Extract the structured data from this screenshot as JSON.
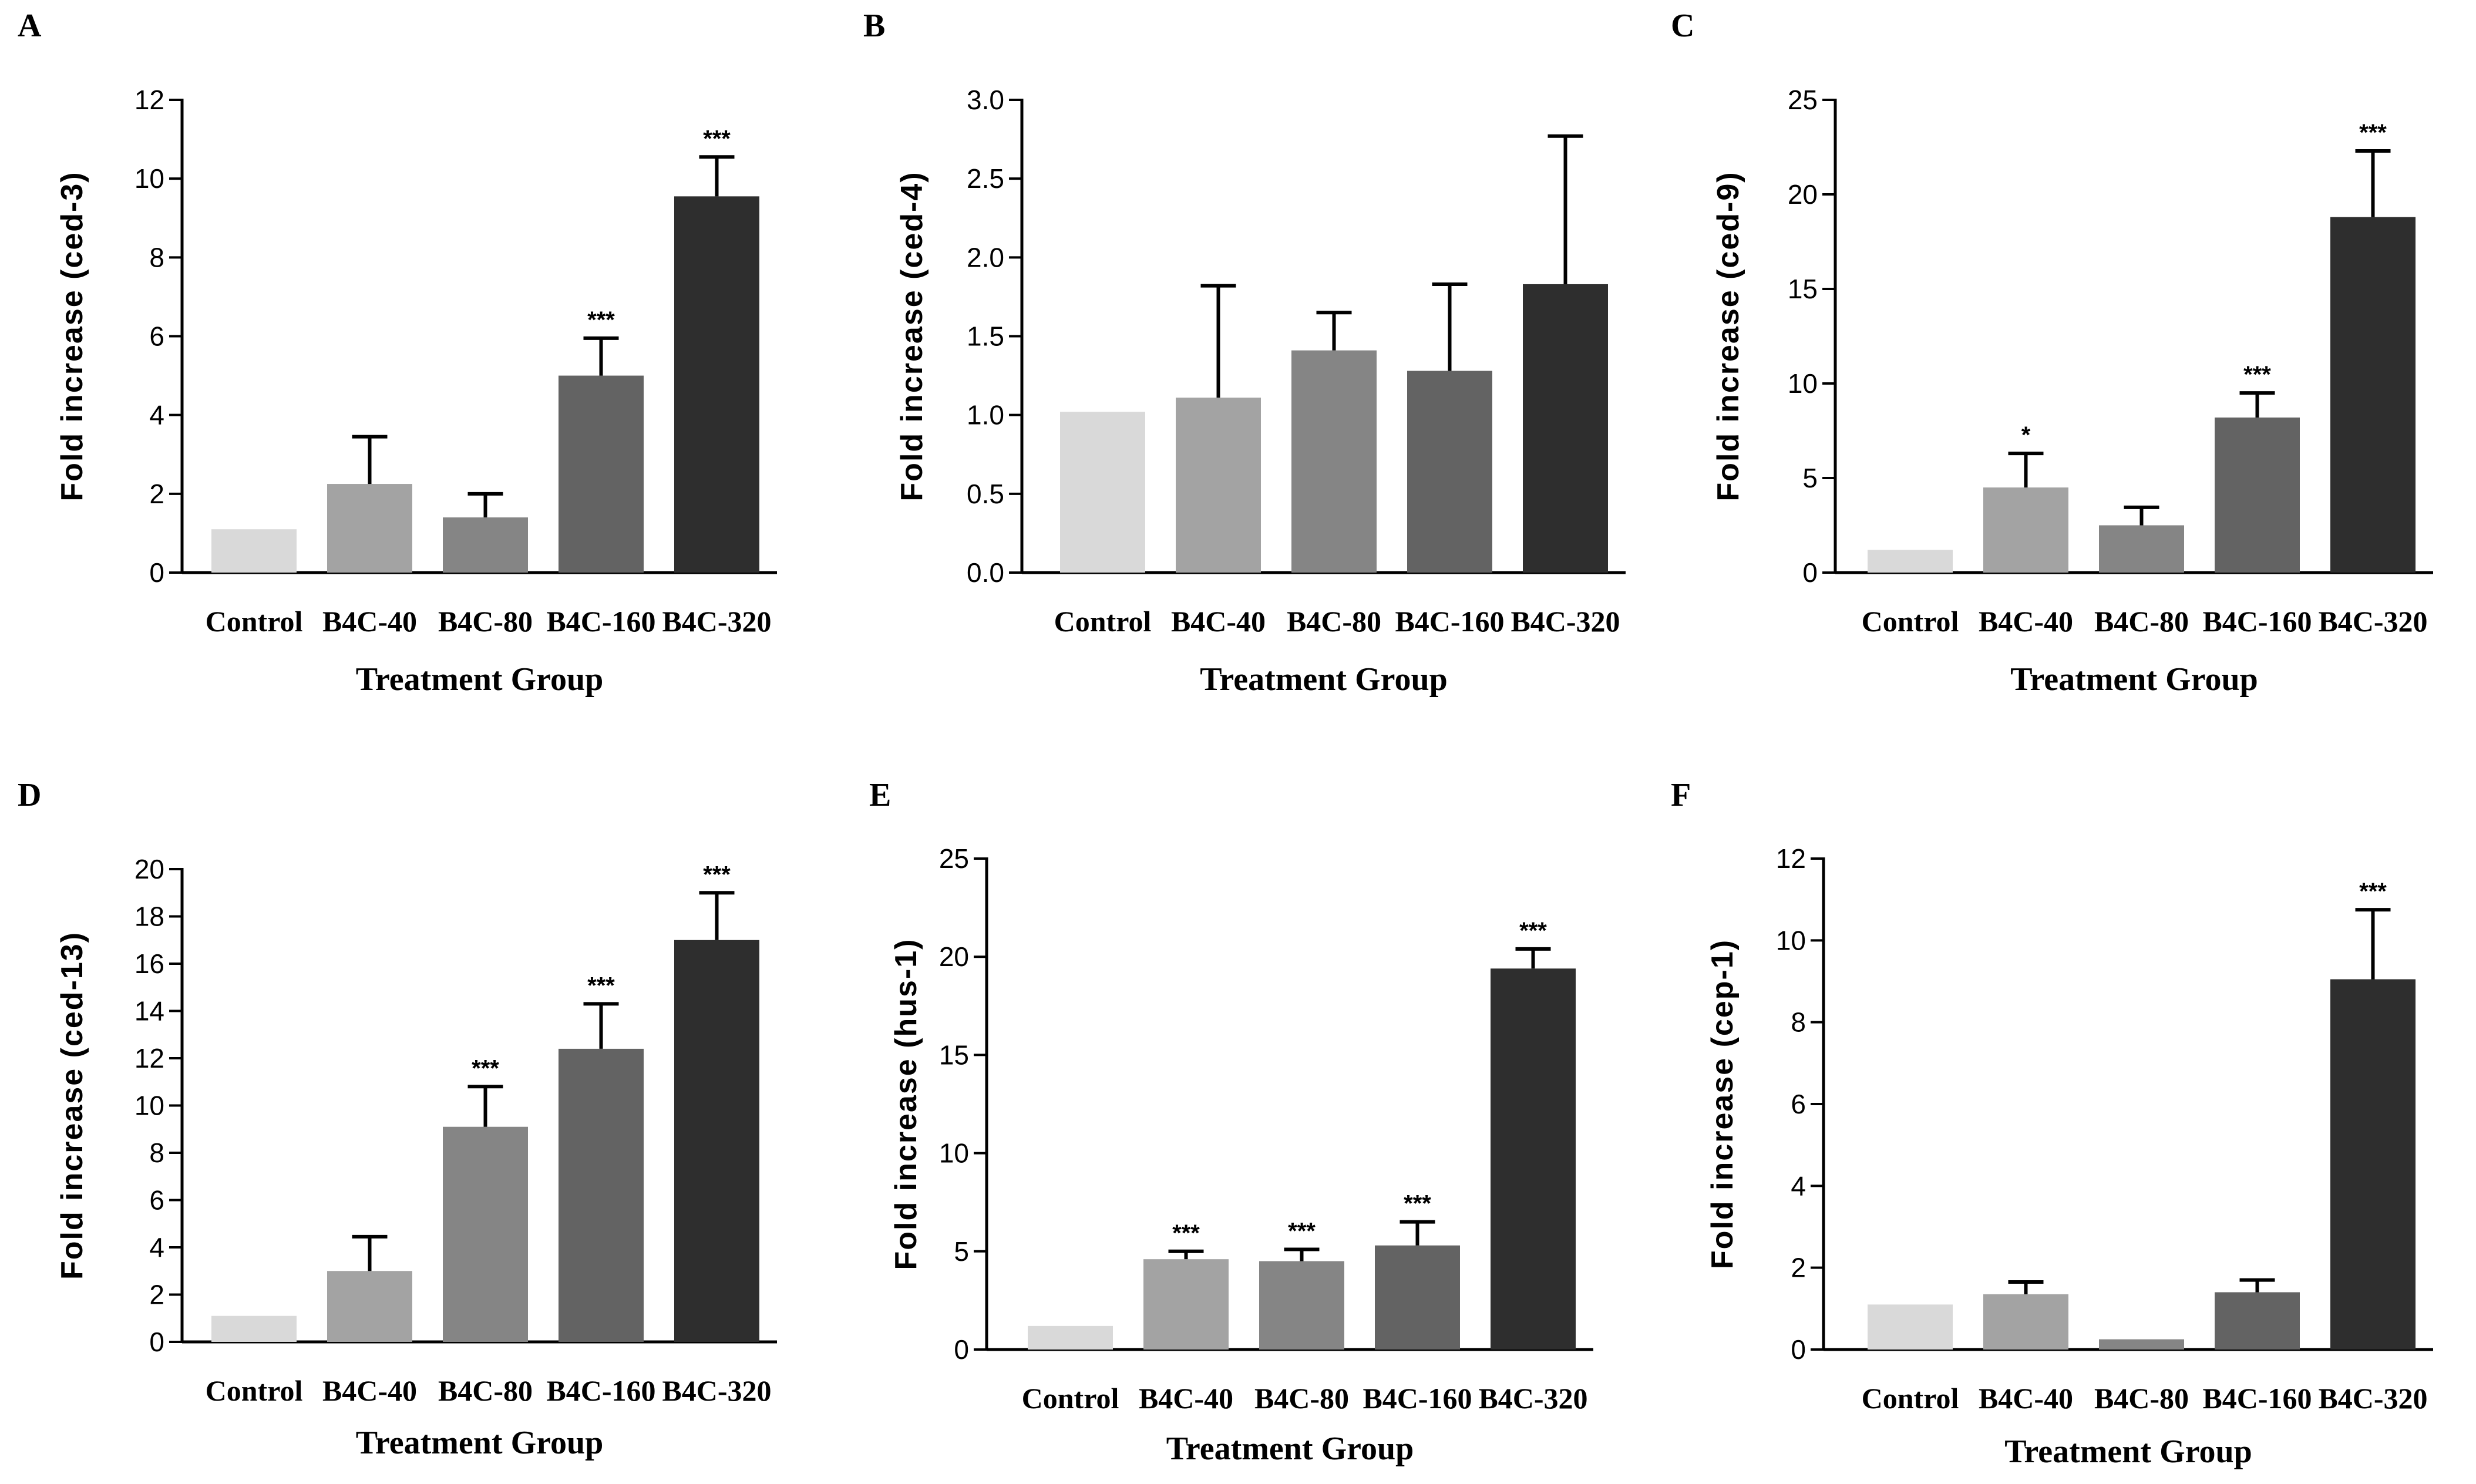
{
  "chart_data": [
    {
      "type": "bar",
      "panel": "A",
      "categories": [
        "Control",
        "B4C-40",
        "B4C-80",
        "B4C-160",
        "B4C-320"
      ],
      "values": [
        1.1,
        2.25,
        1.4,
        5.0,
        9.55
      ],
      "errors": [
        0,
        1.2,
        0.6,
        0.95,
        1.0
      ],
      "significance": [
        "",
        "",
        "",
        "***",
        "***"
      ],
      "xlabel": "Treatment Group",
      "ylabel": "Fold increase (ced-3)",
      "ylim": [
        0,
        12
      ],
      "yticks": [
        "0",
        "2",
        "4",
        "6",
        "8",
        "10",
        "12"
      ],
      "colors": [
        "#d9d9d9",
        "#a3a3a3",
        "#858585",
        "#636363",
        "#2e2e2e"
      ]
    },
    {
      "type": "bar",
      "panel": "B",
      "categories": [
        "Control",
        "B4C-40",
        "B4C-80",
        "B4C-160",
        "B4C-320"
      ],
      "values": [
        1.02,
        1.11,
        1.41,
        1.28,
        1.83
      ],
      "errors": [
        0,
        0.71,
        0.24,
        0.55,
        0.94
      ],
      "significance": [
        "",
        "",
        "",
        "",
        ""
      ],
      "xlabel": "Treatment Group",
      "ylabel": "Fold increase (ced-4)",
      "ylim": [
        0,
        3.0
      ],
      "yticks": [
        "0.0",
        "0.5",
        "1.0",
        "1.5",
        "2.0",
        "2.5",
        "3.0"
      ],
      "colors": [
        "#d9d9d9",
        "#a3a3a3",
        "#858585",
        "#636363",
        "#2e2e2e"
      ]
    },
    {
      "type": "bar",
      "panel": "C",
      "categories": [
        "Control",
        "B4C-40",
        "B4C-80",
        "B4C-160",
        "B4C-320"
      ],
      "values": [
        1.2,
        4.5,
        2.5,
        8.2,
        18.8
      ],
      "errors": [
        0,
        1.8,
        0.95,
        1.3,
        3.5
      ],
      "significance": [
        "",
        "*",
        "",
        "***",
        "***"
      ],
      "xlabel": "Treatment Group",
      "ylabel": "Fold increase (ced-9)",
      "ylim": [
        0,
        25
      ],
      "yticks": [
        "0",
        "5",
        "10",
        "15",
        "20",
        "25"
      ],
      "colors": [
        "#d9d9d9",
        "#a3a3a3",
        "#858585",
        "#636363",
        "#2e2e2e"
      ]
    },
    {
      "type": "bar",
      "panel": "D",
      "categories": [
        "Control",
        "B4C-40",
        "B4C-80",
        "B4C-160",
        "B4C-320"
      ],
      "values": [
        1.1,
        3.0,
        9.1,
        12.4,
        17.0
      ],
      "errors": [
        0,
        1.45,
        1.7,
        1.9,
        2.0
      ],
      "significance": [
        "",
        "",
        "***",
        "***",
        "***"
      ],
      "xlabel": "Treatment Group",
      "ylabel": "Fold increase (ced-13)",
      "ylim": [
        0,
        20
      ],
      "yticks": [
        "0",
        "2",
        "4",
        "6",
        "8",
        "10",
        "12",
        "14",
        "16",
        "18",
        "20"
      ],
      "colors": [
        "#d9d9d9",
        "#a3a3a3",
        "#858585",
        "#636363",
        "#2e2e2e"
      ]
    },
    {
      "type": "bar",
      "panel": "E",
      "categories": [
        "Control",
        "B4C-40",
        "B4C-80",
        "B4C-160",
        "B4C-320"
      ],
      "values": [
        1.2,
        4.6,
        4.5,
        5.3,
        19.4
      ],
      "errors": [
        0,
        0.4,
        0.6,
        1.2,
        1.0
      ],
      "significance": [
        "",
        "***",
        "***",
        "***",
        "***"
      ],
      "xlabel": "Treatment Group",
      "ylabel": "Fold increase (hus-1)",
      "ylim": [
        0,
        25
      ],
      "yticks": [
        "0",
        "5",
        "10",
        "15",
        "20",
        "25"
      ],
      "colors": [
        "#d9d9d9",
        "#a3a3a3",
        "#858585",
        "#636363",
        "#2e2e2e"
      ]
    },
    {
      "type": "bar",
      "panel": "F",
      "categories": [
        "Control",
        "B4C-40",
        "B4C-80",
        "B4C-160",
        "B4C-320"
      ],
      "values": [
        1.1,
        1.35,
        0.25,
        1.4,
        9.05
      ],
      "errors": [
        0,
        0.3,
        0.0,
        0.3,
        1.7
      ],
      "significance": [
        "",
        "",
        "",
        "",
        "***"
      ],
      "xlabel": "Treatment Group",
      "ylabel": "Fold increase (cep-1)",
      "ylim": [
        0,
        12
      ],
      "yticks": [
        "0",
        "2",
        "4",
        "6",
        "8",
        "10",
        "12"
      ],
      "colors": [
        "#d9d9d9",
        "#a3a3a3",
        "#858585",
        "#636363",
        "#2e2e2e"
      ]
    }
  ]
}
